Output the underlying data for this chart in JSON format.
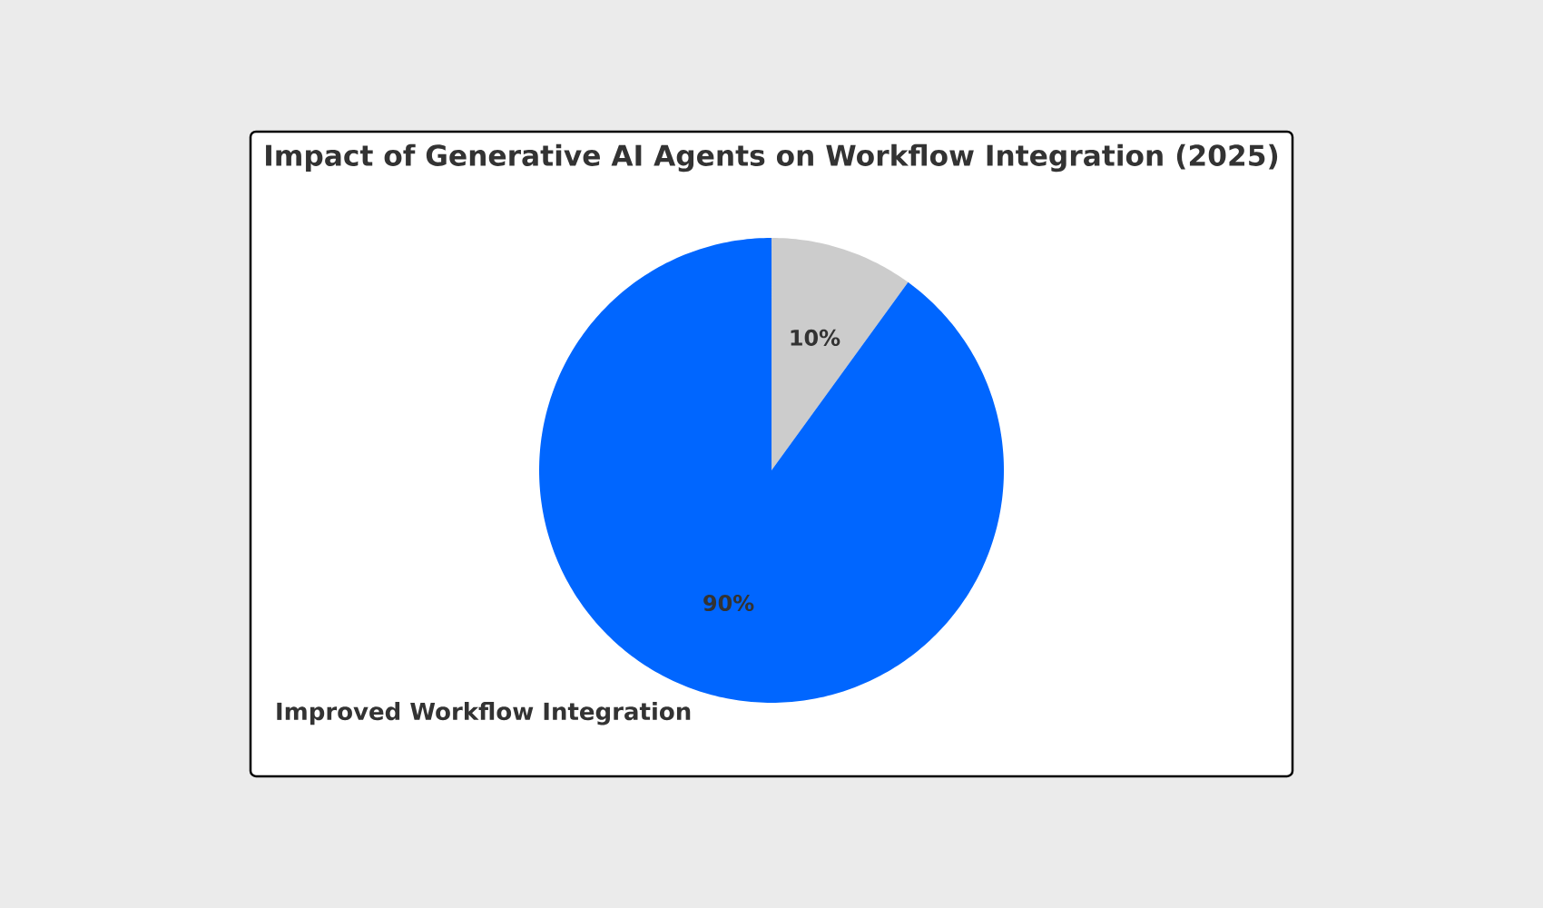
{
  "chart_data": {
    "type": "pie",
    "title": "Impact of Generative AI Agents on Workflow Integration (2025)",
    "categories": [
      null,
      "Improved Workflow Integration"
    ],
    "values": [
      10,
      90
    ],
    "colors": [
      "#cccccc",
      "#0066ff"
    ],
    "value_labels": [
      "10%",
      "90%"
    ]
  }
}
